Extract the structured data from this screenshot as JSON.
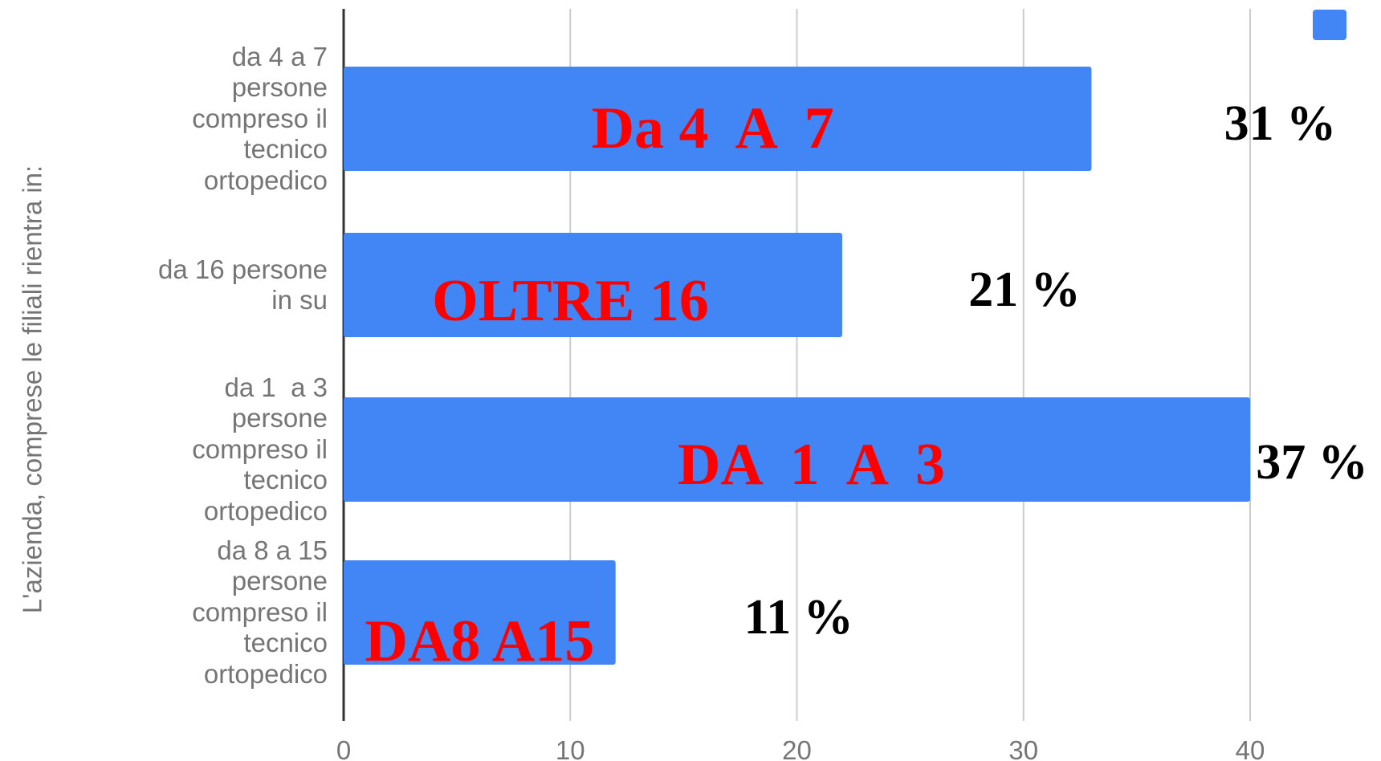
{
  "chart_data": {
    "type": "bar",
    "orientation": "horizontal",
    "y_axis_label": "L'azienda, comprese le filiali rientra in:",
    "categories": [
      [
        "da 4 a 7",
        "persone",
        "compreso il",
        "tecnico",
        "ortopedico"
      ],
      [
        "da 16 persone",
        "in su"
      ],
      [
        "da 1  a 3",
        "persone",
        "compreso il",
        "tecnico",
        "ortopedico"
      ],
      [
        "da 8 a 15",
        "persone",
        "compreso il",
        "tecnico",
        "ortopedico"
      ]
    ],
    "values": [
      33,
      22,
      40,
      12
    ],
    "color": "#4285f4",
    "xlim": [
      0,
      40
    ],
    "xticks": [
      0,
      10,
      20,
      30,
      40
    ],
    "grid": true,
    "legend": "top-right",
    "annotations": {
      "bar_texts": [
        "Da 4  A  7",
        "OLTRE 16",
        "DA  1  A  3",
        "DA8 A15"
      ],
      "percent_texts": [
        "31 %",
        "21 %",
        "37 %",
        "11 %"
      ]
    }
  }
}
